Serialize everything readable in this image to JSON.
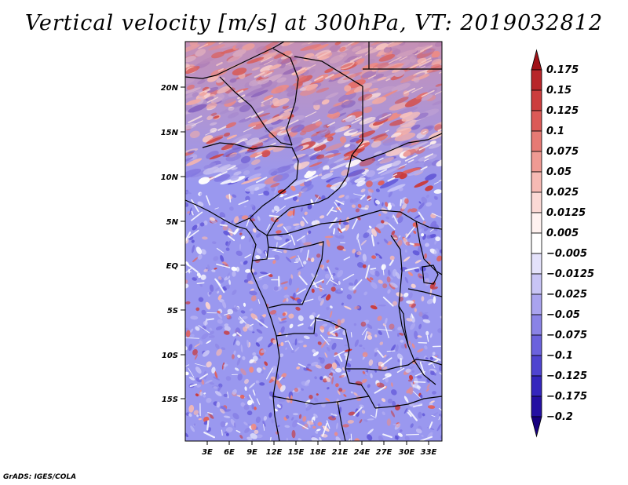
{
  "title": "Vertical velocity [m/s] at 300hPa, VT: 2019032812",
  "footer": "GrADS: IGES/COLA",
  "map": {
    "lat_labels": [
      "20N",
      "15N",
      "10N",
      "5N",
      "EQ",
      "5S",
      "10S",
      "15S"
    ],
    "lon_labels": [
      "3E",
      "6E",
      "9E",
      "12E",
      "15E",
      "18E",
      "21E",
      "24E",
      "27E",
      "30E",
      "33E"
    ]
  },
  "colorbar": {
    "labels": [
      "0.175",
      "0.15",
      "0.125",
      "0.1",
      "0.075",
      "0.05",
      "0.025",
      "0.0125",
      "0.005",
      "−0.005",
      "−0.0125",
      "−0.025",
      "−0.05",
      "−0.075",
      "−0.1",
      "−0.125",
      "−0.175",
      "−0.2"
    ],
    "colors": [
      "#a01218",
      "#b8262a",
      "#cc3e3e",
      "#db5a57",
      "#e67a74",
      "#ef9a93",
      "#f6bab4",
      "#fbd9d5",
      "#fff2f0",
      "#ffffff",
      "#e4e2fb",
      "#c8c4f5",
      "#a9a3ee",
      "#8a83e6",
      "#6b62dd",
      "#4f44d0",
      "#3426bd",
      "#2410a2",
      "#17007f"
    ]
  }
}
